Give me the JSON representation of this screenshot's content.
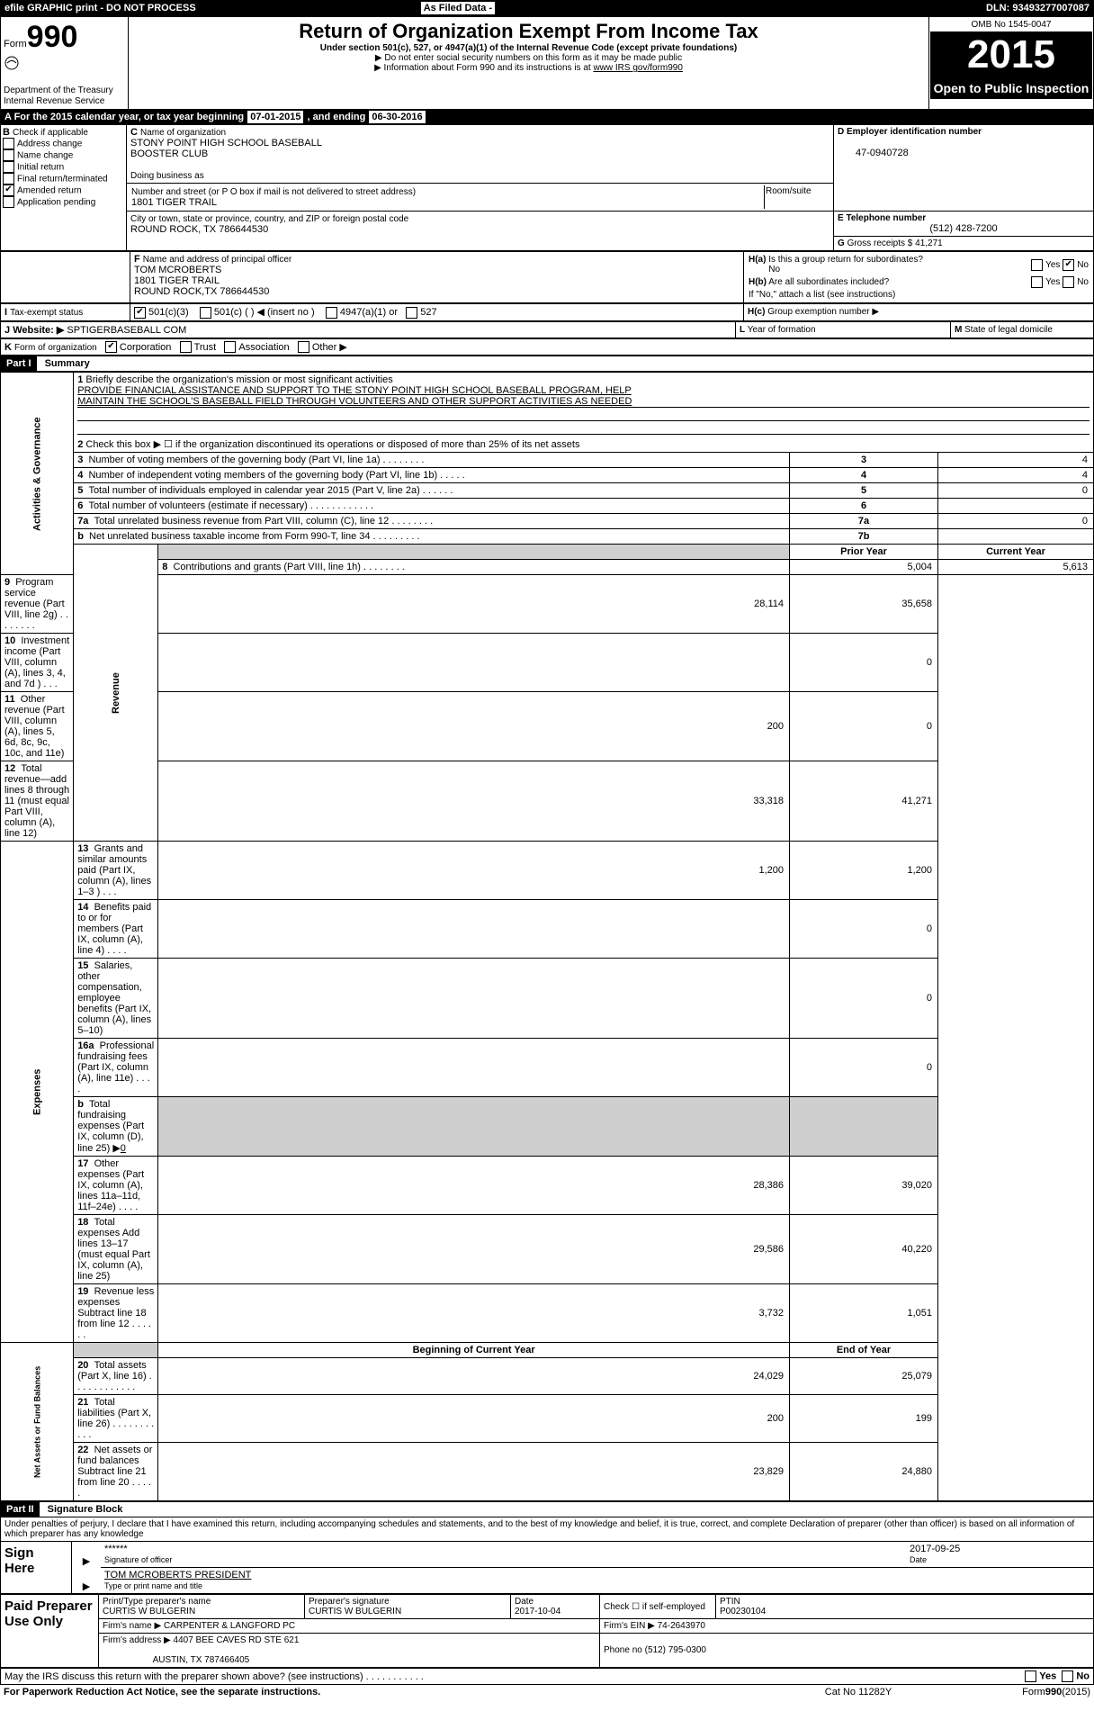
{
  "topbar": {
    "efile": "efile GRAPHIC print - DO NOT PROCESS",
    "asfiled": "As Filed Data -",
    "dln_label": "DLN:",
    "dln": "93493277007087"
  },
  "header": {
    "form_prefix": "Form",
    "form_no": "990",
    "dept": "Department of the Treasury",
    "irs": "Internal Revenue Service",
    "title": "Return of Organization Exempt From Income Tax",
    "subtitle": "Under section 501(c), 527, or 4947(a)(1) of the Internal Revenue Code (except private foundations)",
    "note1": "▶ Do not enter social security numbers on this form as it may be made public",
    "note2_pre": "▶ Information about Form 990 and its instructions is at ",
    "note2_link": "www IRS gov/form990",
    "omb": "OMB No 1545-0047",
    "year": "2015",
    "open": "Open to Public Inspection"
  },
  "A": {
    "label": "A  For the 2015 calendar year, or tax year beginning ",
    "beg": "07-01-2015",
    "mid": "   , and ending ",
    "end": "06-30-2016"
  },
  "B": {
    "label": "B",
    "check": "Check if applicable",
    "addr_change": "Address change",
    "name_change": "Name change",
    "initial": "Initial return",
    "final": "Final return/terminated",
    "amended_chk": "✔",
    "amended": "Amended return",
    "app_pending": "Application pending"
  },
  "C": {
    "label": "C",
    "name_lbl": "Name of organization",
    "name1": "STONY POINT HIGH SCHOOL BASEBALL",
    "name2": "BOOSTER CLUB",
    "dba_lbl": "Doing business as",
    "street_lbl": "Number and street (or P O  box if mail is not delivered to street address)",
    "room_lbl": "Room/suite",
    "street": "1801 TIGER TRAIL",
    "city_lbl": "City or town, state or province, country, and ZIP or foreign postal code",
    "city": "ROUND ROCK, TX  786644530"
  },
  "D": {
    "label": "D Employer identification number",
    "ein": "47-0940728"
  },
  "E": {
    "label": "E Telephone number",
    "phone": "(512) 428-7200"
  },
  "G": {
    "label": "G",
    "text": "Gross receipts $",
    "amount": "41,271"
  },
  "F": {
    "label": "F",
    "text": "Name and address of principal officer",
    "name": "TOM MCROBERTS",
    "street": "1801 TIGER TRAIL",
    "city": "ROUND ROCK,TX 786644530"
  },
  "H": {
    "a_lbl": "H(a)",
    "a_text": "Is this a group return for subordinates?",
    "no": "No",
    "b_lbl": "H(b)",
    "b_text": "Are all subordinates included?",
    "b_note": "If \"No,\" attach a list (see instructions)",
    "c_lbl": "H(c)",
    "c_text": "Group exemption number ▶",
    "yes": "Yes",
    "no2": "No",
    "chk": "✔"
  },
  "I": {
    "label": "I",
    "text": "Tax-exempt status",
    "c3": "501(c)(3)",
    "c": "501(c) (   ) ◀ (insert no )",
    "a1": "4947(a)(1) or",
    "s527": "527",
    "chk": "✔"
  },
  "J": {
    "label": "J",
    "text": "Website: ▶",
    "url": "SPTIGERBASEBALL COM"
  },
  "K": {
    "label": "K",
    "text": "Form of organization",
    "corp": "Corporation",
    "trust": "Trust",
    "assoc": "Association",
    "other": "Other ▶",
    "chk": "✔"
  },
  "L": {
    "label": "L",
    "text": "Year of formation"
  },
  "M": {
    "label": "M",
    "text": "State of legal domicile"
  },
  "part1": {
    "hdr": "Part I",
    "title": "Summary",
    "l1": "1",
    "l1_text": "Briefly describe the organization's mission or most significant activities",
    "mission1": "PROVIDE FINANCIAL ASSISTANCE AND SUPPORT TO THE STONY POINT HIGH SCHOOL BASEBALL PROGRAM, HELP",
    "mission2": "MAINTAIN THE SCHOOL'S BASEBALL FIELD THROUGH VOLUNTEERS AND OTHER SUPPORT ACTIVITIES AS NEEDED",
    "l2": "2",
    "l2_text": "Check this box ▶ ☐ if the organization discontinued its operations or disposed of more than 25% of its net assets",
    "tab_gov": "Activities & Governance",
    "tab_rev": "Revenue",
    "tab_exp": "Expenses",
    "tab_net": "Net Assets or Fund Balances",
    "rows_gov": [
      {
        "n": "3",
        "t": "Number of voting members of the governing body (Part VI, line 1a)  .     .     .     .     .     .     .     .",
        "box": "3",
        "v": "4"
      },
      {
        "n": "4",
        "t": "Number of independent voting members of the governing body (Part VI, line 1b)     .     .     .     .     .",
        "box": "4",
        "v": "4"
      },
      {
        "n": "5",
        "t": "Total number of individuals employed in calendar year 2015 (Part V, line 2a)   .     .     .     .     .     .",
        "box": "5",
        "v": "0"
      },
      {
        "n": "6",
        "t": "Total number of volunteers (estimate if necessary)   .     .     .     .     .     .     .     .     .     .     .     .",
        "box": "6",
        "v": ""
      },
      {
        "n": "7a",
        "t": "Total unrelated business revenue from Part VIII, column (C), line 12   .     .     .     .     .     .     .     .",
        "box": "7a",
        "v": "0"
      },
      {
        "n": "b",
        "t": "Net unrelated business taxable income from Form 990-T, line 34    .     .     .     .     .     .     .     .     .",
        "box": "7b",
        "v": ""
      }
    ],
    "prior": "Prior Year",
    "curr": "Current Year",
    "rows_rev": [
      {
        "n": "8",
        "t": "Contributions and grants (Part VIII, line 1h)    .     .     .     .     .     .     .     .",
        "p": "5,004",
        "c": "5,613"
      },
      {
        "n": "9",
        "t": "Program service revenue (Part VIII, line 2g)    .     .     .     .     .     .     .     .",
        "p": "28,114",
        "c": "35,658"
      },
      {
        "n": "10",
        "t": "Investment income (Part VIII, column (A), lines 3, 4, and 7d )    .     .     .",
        "p": "",
        "c": "0"
      },
      {
        "n": "11",
        "t": "Other revenue (Part VIII, column (A), lines 5, 6d, 8c, 9c, 10c, and 11e)",
        "p": "200",
        "c": "0"
      },
      {
        "n": "12",
        "t": "Total revenue—add lines 8 through 11 (must equal Part VIII, column (A), line 12)",
        "p": "33,318",
        "c": "41,271"
      }
    ],
    "rows_exp": [
      {
        "n": "13",
        "t": "Grants and similar amounts paid (Part IX, column (A), lines 1–3 )    .     .     .",
        "p": "1,200",
        "c": "1,200"
      },
      {
        "n": "14",
        "t": "Benefits paid to or for members (Part IX, column (A), line 4)    .     .     .     .",
        "p": "",
        "c": "0"
      },
      {
        "n": "15",
        "t": "Salaries, other compensation, employee benefits (Part IX, column (A), lines 5–10)",
        "p": "",
        "c": "0"
      },
      {
        "n": "16a",
        "t": "Professional fundraising fees (Part IX, column (A), line 11e)    .     .     .     .",
        "p": "",
        "c": "0"
      },
      {
        "n": "b",
        "t": "Total fundraising expenses (Part IX, column (D), line 25) ▶",
        "p": "grey",
        "c": "grey",
        "extra": "0"
      },
      {
        "n": "17",
        "t": "Other expenses (Part IX, column (A), lines 11a–11d, 11f–24e)    .     .     .     .",
        "p": "28,386",
        "c": "39,020"
      },
      {
        "n": "18",
        "t": "Total expenses  Add lines 13–17 (must equal Part IX, column (A), line 25)",
        "p": "29,586",
        "c": "40,220"
      },
      {
        "n": "19",
        "t": "Revenue less expenses  Subtract line 18 from line 12   .     .     .     .     .     .",
        "p": "3,732",
        "c": "1,051"
      }
    ],
    "boy": "Beginning of Current Year",
    "eoy": "End of Year",
    "rows_net": [
      {
        "n": "20",
        "t": "Total assets (Part X, line 16)    .     .     .     .     .     .     .     .     .     .     .     .",
        "p": "24,029",
        "c": "25,079"
      },
      {
        "n": "21",
        "t": "Total liabilities (Part X, line 26)    .     .     .     .     .     .     .     .     .     .     .",
        "p": "200",
        "c": "199"
      },
      {
        "n": "22",
        "t": "Net assets or fund balances  Subtract line 21 from line 20    .     .     .     .     .",
        "p": "23,829",
        "c": "24,880"
      }
    ]
  },
  "part2": {
    "hdr": "Part II",
    "title": "Signature Block",
    "perjury": "Under penalties of perjury, I declare that I have examined this return, including accompanying schedules and statements, and to the best of my knowledge and belief, it is true, correct, and complete  Declaration of preparer (other than officer) is based on all information of which preparer has any knowledge",
    "sign_here": "Sign Here",
    "sig_stars": "******",
    "sig_lbl": "Signature of officer",
    "sig_date": "2017-09-25",
    "date_lbl": "Date",
    "officer": "TOM MCROBERTS PRESIDENT",
    "type_lbl": "Type or print name and title",
    "paid": "Paid Preparer Use Only",
    "prep_name_lbl": "Print/Type preparer's name",
    "prep_name": "CURTIS W BULGERIN",
    "prep_sig_lbl": "Preparer's signature",
    "prep_sig": "CURTIS W BULGERIN",
    "prep_date_lbl": "Date",
    "prep_date": "2017-10-04",
    "self_emp": "Check ☐ if self-employed",
    "ptin_lbl": "PTIN",
    "ptin": "P00230104",
    "firm_name_lbl": "Firm's name     ▶",
    "firm_name": "CARPENTER & LANGFORD PC",
    "firm_ein_lbl": "Firm's EIN ▶",
    "firm_ein": "74-2643970",
    "firm_addr_lbl": "Firm's address ▶",
    "firm_addr1": "4407 BEE CAVES RD STE 621",
    "firm_addr2": "AUSTIN, TX  787466405",
    "phone_lbl": "Phone no",
    "phone": "(512) 795-0300",
    "discuss": "May the IRS discuss this return with the preparer shown above? (see instructions)    .     .     .     .     .     .     .     .     .     .     .",
    "yes": "Yes",
    "no": "No"
  },
  "footer": {
    "pra": "For Paperwork Reduction Act Notice, see the separate instructions.",
    "cat": "Cat No  11282Y",
    "form": "Form",
    "formno": "990",
    "formyr": "(2015)"
  }
}
